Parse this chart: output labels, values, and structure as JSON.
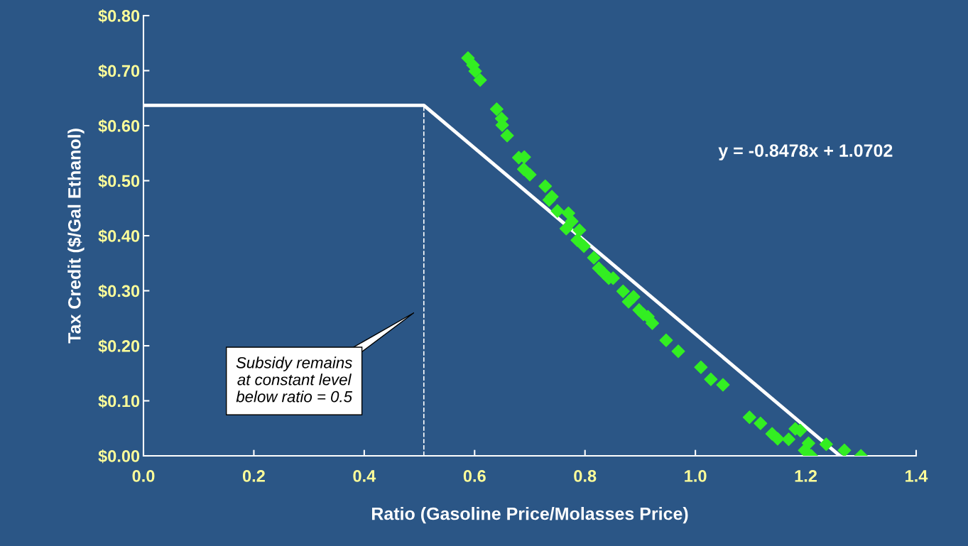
{
  "chart_data": {
    "type": "scatter",
    "xlabel": "Ratio (Gasoline Price/Molasses Price)",
    "ylabel": "Tax Credit ($/Gal Ethanol)",
    "xlim": [
      0,
      1.4
    ],
    "ylim": [
      0,
      0.8
    ],
    "xticks": [
      {
        "value": 0,
        "label": "0.0"
      },
      {
        "value": 0.2,
        "label": "0.2"
      },
      {
        "value": 0.4,
        "label": "0.4"
      },
      {
        "value": 0.6,
        "label": "0.6"
      },
      {
        "value": 0.8,
        "label": "0.8"
      },
      {
        "value": 1.0,
        "label": "1.0"
      },
      {
        "value": 1.2,
        "label": "1.2"
      },
      {
        "value": 1.4,
        "label": "1.4"
      }
    ],
    "yticks": [
      {
        "value": 0,
        "label": "$0.00"
      },
      {
        "value": 0.1,
        "label": "$0.10"
      },
      {
        "value": 0.2,
        "label": "$0.20"
      },
      {
        "value": 0.3,
        "label": "$0.30"
      },
      {
        "value": 0.4,
        "label": "$0.40"
      },
      {
        "value": 0.5,
        "label": "$0.50"
      },
      {
        "value": 0.6,
        "label": "$0.60"
      },
      {
        "value": 0.7,
        "label": "$0.70"
      },
      {
        "value": 0.8,
        "label": "$0.80"
      }
    ],
    "grid": false,
    "legend": false,
    "series": [
      {
        "color": "#33ee22",
        "marker": "diamond",
        "x": [
          0.588,
          0.597,
          0.601,
          0.61,
          0.64,
          0.649,
          0.65,
          0.659,
          0.68,
          0.69,
          0.689,
          0.7,
          0.728,
          0.735,
          0.74,
          0.75,
          0.766,
          0.77,
          0.776,
          0.786,
          0.79,
          0.798,
          0.816,
          0.825,
          0.834,
          0.843,
          0.851,
          0.869,
          0.879,
          0.888,
          0.898,
          0.906,
          0.914,
          0.922,
          0.947,
          0.969,
          1.01,
          1.028,
          1.05,
          1.098,
          1.118,
          1.139,
          1.149,
          1.169,
          1.181,
          1.19,
          1.198,
          1.205,
          1.21,
          1.237,
          1.27,
          1.3
        ],
        "values": [
          0.723,
          0.71,
          0.699,
          0.683,
          0.63,
          0.613,
          0.601,
          0.582,
          0.542,
          0.543,
          0.521,
          0.511,
          0.49,
          0.465,
          0.471,
          0.445,
          0.413,
          0.441,
          0.426,
          0.392,
          0.41,
          0.381,
          0.36,
          0.341,
          0.332,
          0.323,
          0.323,
          0.299,
          0.28,
          0.289,
          0.265,
          0.257,
          0.253,
          0.241,
          0.21,
          0.19,
          0.161,
          0.139,
          0.129,
          0.07,
          0.059,
          0.04,
          0.031,
          0.03,
          0.049,
          0.046,
          0.01,
          0.023,
          0.0,
          0.021,
          0.01,
          0.0
        ]
      },
      {
        "type": "line",
        "color": "#ffffff",
        "marker": "none",
        "line_style": "solid",
        "x": [
          0,
          0.508,
          1.262
        ],
        "values": [
          0.637,
          0.637,
          0
        ]
      },
      {
        "type": "line",
        "color": "#ffffff",
        "marker": "none",
        "line_style": "dashed",
        "x": [
          0.508,
          0.508
        ],
        "values": [
          0,
          0.637
        ]
      }
    ],
    "annotations": [
      "Subsidy remains\nat constant level\nbelow ratio = 0.5",
      "y = -0.8478x + 1.0702"
    ]
  }
}
